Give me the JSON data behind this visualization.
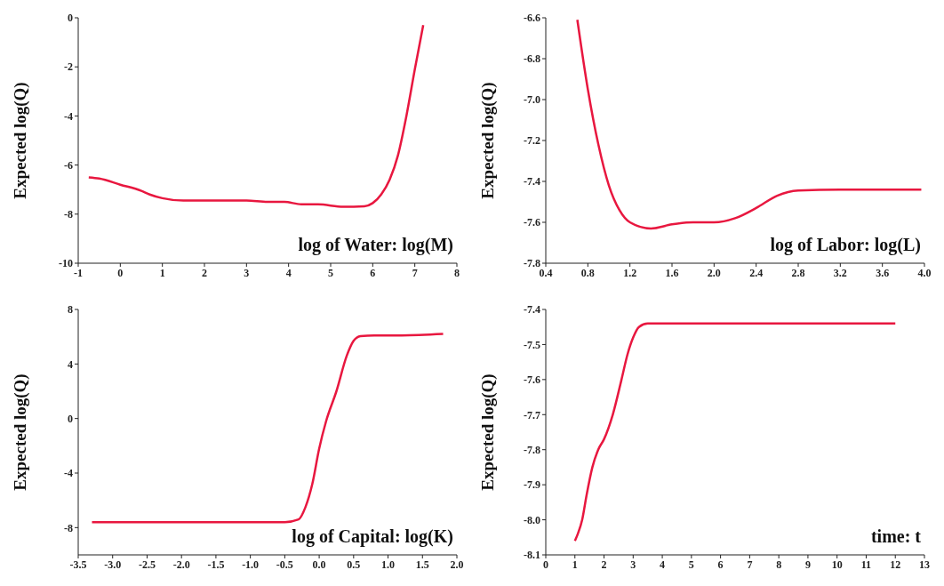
{
  "chart_data": [
    {
      "type": "line",
      "xlabel": "log of Water: log(M)",
      "ylabel": "Expected log(Q)",
      "xlim": [
        -1,
        8
      ],
      "xticks": [
        -1,
        0,
        1,
        2,
        3,
        4,
        5,
        6,
        7,
        8
      ],
      "ylim": [
        -10,
        0
      ],
      "yticks": [
        -10,
        -8,
        -6,
        -4,
        -2,
        0
      ],
      "grid": false,
      "legend": false,
      "x": [
        -0.75,
        -0.5,
        0,
        0.5,
        0.7,
        1,
        1.5,
        2,
        3,
        3.5,
        3.9,
        4.3,
        4.7,
        5.3,
        5.8,
        6,
        6.2,
        6.4,
        6.6,
        6.8,
        7,
        7.2
      ],
      "series": [
        {
          "color": "#e8173f",
          "values": [
            -6.5,
            -6.55,
            -6.8,
            -7.05,
            -7.2,
            -7.35,
            -7.45,
            -7.45,
            -7.45,
            -7.5,
            -7.5,
            -7.6,
            -7.6,
            -7.7,
            -7.68,
            -7.55,
            -7.2,
            -6.6,
            -5.6,
            -4,
            -2.1,
            -0.3
          ]
        }
      ]
    },
    {
      "type": "line",
      "xlabel": "log of Labor: log(L)",
      "ylabel": "Expected log(Q)",
      "xlim": [
        0.4,
        4.0
      ],
      "xticks": [
        {
          "value": 0.4,
          "label": "0.4"
        },
        {
          "value": 0.8,
          "label": "0.8"
        },
        {
          "value": 1.2,
          "label": "1.2"
        },
        {
          "value": 1.6,
          "label": "1.6"
        },
        {
          "value": 2.0,
          "label": "2.0"
        },
        {
          "value": 2.4,
          "label": "2.4"
        },
        {
          "value": 2.8,
          "label": "2.8"
        },
        {
          "value": 3.2,
          "label": "3.2"
        },
        {
          "value": 3.6,
          "label": "3.6"
        },
        {
          "value": 4.0,
          "label": "4.0"
        }
      ],
      "ylim": [
        -7.8,
        -6.6
      ],
      "yticks": [
        -7.8,
        -7.6,
        -7.4,
        -7.2,
        {
          "value": -7.0,
          "label": "-7.0"
        },
        -6.8,
        -6.6
      ],
      "grid": false,
      "legend": false,
      "x": [
        0.7,
        0.8,
        0.9,
        1.0,
        1.1,
        1.2,
        1.4,
        1.6,
        1.8,
        2.0,
        2.2,
        2.4,
        2.6,
        2.8,
        3.2,
        3.97
      ],
      "series": [
        {
          "color": "#e8173f",
          "values": [
            -6.61,
            -6.95,
            -7.22,
            -7.42,
            -7.54,
            -7.6,
            -7.63,
            -7.61,
            -7.6,
            -7.6,
            -7.58,
            -7.53,
            -7.47,
            -7.445,
            -7.44,
            -7.44
          ]
        }
      ]
    },
    {
      "type": "line",
      "xlabel": "log of Capital: log(K)",
      "ylabel": "Expected log(Q)",
      "xlim": [
        -3.5,
        2.0
      ],
      "xticks": [
        -3.5,
        {
          "value": -3.0,
          "label": "-3.0"
        },
        -2.5,
        {
          "value": -2.0,
          "label": "-2.0"
        },
        -1.5,
        {
          "value": -1.0,
          "label": "-1.0"
        },
        -0.5,
        {
          "value": 0,
          "label": "0.0"
        },
        0.5,
        {
          "value": 1.0,
          "label": "1.0"
        },
        1.5,
        {
          "value": 2.0,
          "label": "2.0"
        }
      ],
      "ylim": [
        -10,
        8
      ],
      "yticks": [
        -8,
        -4,
        0,
        4,
        8
      ],
      "grid": false,
      "legend": false,
      "x": [
        -3.3,
        -0.5,
        -0.3,
        -0.2,
        -0.1,
        0,
        0.1,
        0.25,
        0.4,
        0.5,
        0.6,
        0.8,
        1.2,
        1.8
      ],
      "series": [
        {
          "color": "#e8173f",
          "values": [
            -7.6,
            -7.6,
            -7.4,
            -6.5,
            -4.8,
            -2.2,
            -0.2,
            2,
            4.6,
            5.7,
            6.05,
            6.1,
            6.1,
            6.2
          ]
        }
      ]
    },
    {
      "type": "line",
      "xlabel": "time: t",
      "ylabel": "Expected log(Q)",
      "xlim": [
        0,
        13
      ],
      "xticks": [
        0,
        1,
        2,
        3,
        4,
        5,
        6,
        7,
        8,
        9,
        10,
        11,
        12,
        13
      ],
      "ylim": [
        -8.1,
        -7.4
      ],
      "yticks": [
        -8.1,
        {
          "value": -8.0,
          "label": "-8.0"
        },
        -7.9,
        -7.8,
        -7.7,
        -7.6,
        -7.5,
        -7.4
      ],
      "grid": false,
      "legend": false,
      "x": [
        1,
        1.1,
        1.25,
        1.4,
        1.6,
        1.8,
        2.0,
        2.3,
        2.6,
        2.8,
        3.0,
        3.2,
        3.5,
        4,
        12
      ],
      "series": [
        {
          "color": "#e8173f",
          "values": [
            -8.06,
            -8.04,
            -8.0,
            -7.93,
            -7.85,
            -7.8,
            -7.77,
            -7.7,
            -7.6,
            -7.53,
            -7.48,
            -7.45,
            -7.44,
            -7.44,
            -7.44
          ]
        }
      ]
    }
  ]
}
